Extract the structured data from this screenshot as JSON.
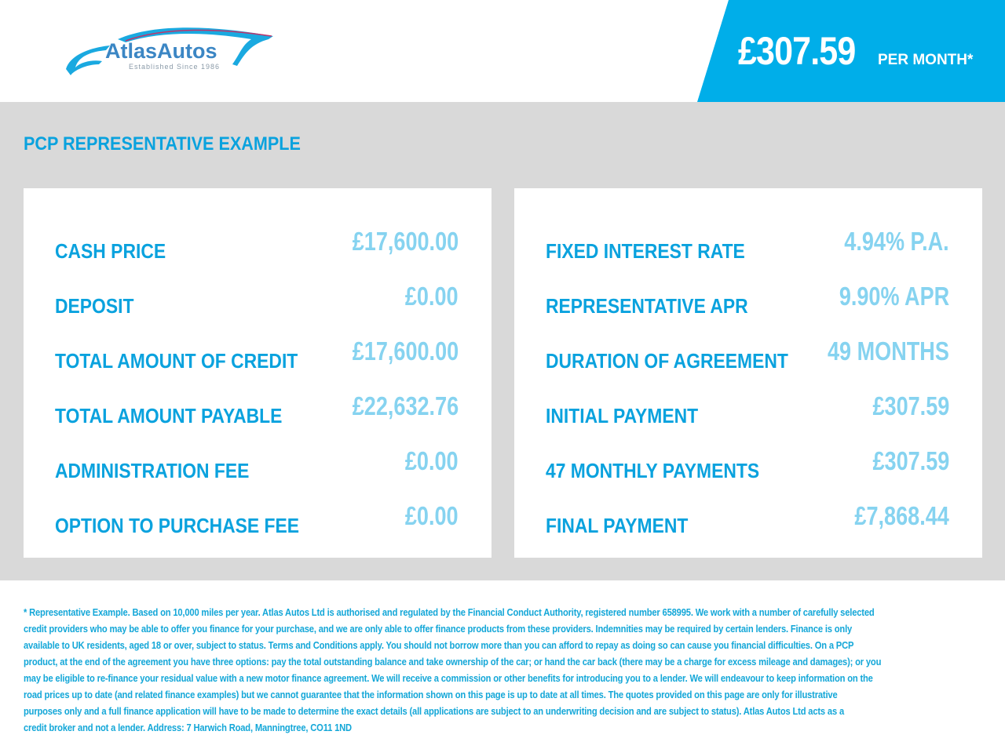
{
  "header": {
    "logo_text": "AtlasAutos",
    "logo_tagline": "Established Since 1986",
    "price": "£307.59",
    "per_month": "PER MONTH*"
  },
  "colors": {
    "brand_blue": "#00aee9",
    "label_blue": "#0aa2de",
    "value_blue": "#86d3f0",
    "background_gray": "#d9d9d9"
  },
  "section_title": "PCP REPRESENTATIVE EXAMPLE",
  "left_panel": [
    {
      "label": "CASH PRICE",
      "value": "£17,600.00"
    },
    {
      "label": "DEPOSIT",
      "value": "£0.00"
    },
    {
      "label": "TOTAL AMOUNT OF CREDIT",
      "value": "£17,600.00"
    },
    {
      "label": "TOTAL AMOUNT PAYABLE",
      "value": "£22,632.76"
    },
    {
      "label": "ADMINISTRATION FEE",
      "value": "£0.00"
    },
    {
      "label": "OPTION TO PURCHASE FEE",
      "value": "£0.00"
    }
  ],
  "right_panel": [
    {
      "label": "FIXED INTEREST RATE",
      "value": "4.94% P.A."
    },
    {
      "label": "REPRESENTATIVE APR",
      "value": "9.90% APR"
    },
    {
      "label": "DURATION OF AGREEMENT",
      "value": "49 MONTHS"
    },
    {
      "label": "INITIAL PAYMENT",
      "value": "£307.59"
    },
    {
      "label": "47 MONTHLY PAYMENTS",
      "value": "£307.59"
    },
    {
      "label": "FINAL PAYMENT",
      "value": "£7,868.44"
    }
  ],
  "footer_lines": [
    "* Representative Example. Based on 10,000 miles per year. Atlas Autos Ltd is authorised and regulated by the Financial Conduct Authority, registered number 658995. We work with a number of carefully selected",
    "credit providers who may be able to offer you finance for your purchase, and we are only able to offer finance products from these providers. Indemnities may be required by certain lenders. Finance is only",
    "available to UK residents, aged 18 or over, subject to status. Terms and Conditions apply. You should not borrow more than you can afford to repay as doing so can cause you financial difficulties. On a PCP",
    "product, at the end of the agreement you have three options: pay the total outstanding balance and take ownership of the car; or hand the car back (there may be a charge for excess mileage and damages); or you",
    "may be eligible to re-finance your residual value with a new motor finance agreement. We will receive a commission or other benefits for introducing you to a lender. We will endeavour to keep information on the",
    "road prices up to date (and related finance examples) but we cannot guarantee that the information shown on this page is up to date at all times. The quotes provided on this page are only for illustrative",
    "purposes only and a full finance application will have to be made to determine the exact details (all applications are subject to an underwriting decision and are subject to status). Atlas Autos Ltd acts as a",
    "credit broker and not a lender. Address: 7 Harwich Road, Manningtree, CO11 1ND"
  ]
}
